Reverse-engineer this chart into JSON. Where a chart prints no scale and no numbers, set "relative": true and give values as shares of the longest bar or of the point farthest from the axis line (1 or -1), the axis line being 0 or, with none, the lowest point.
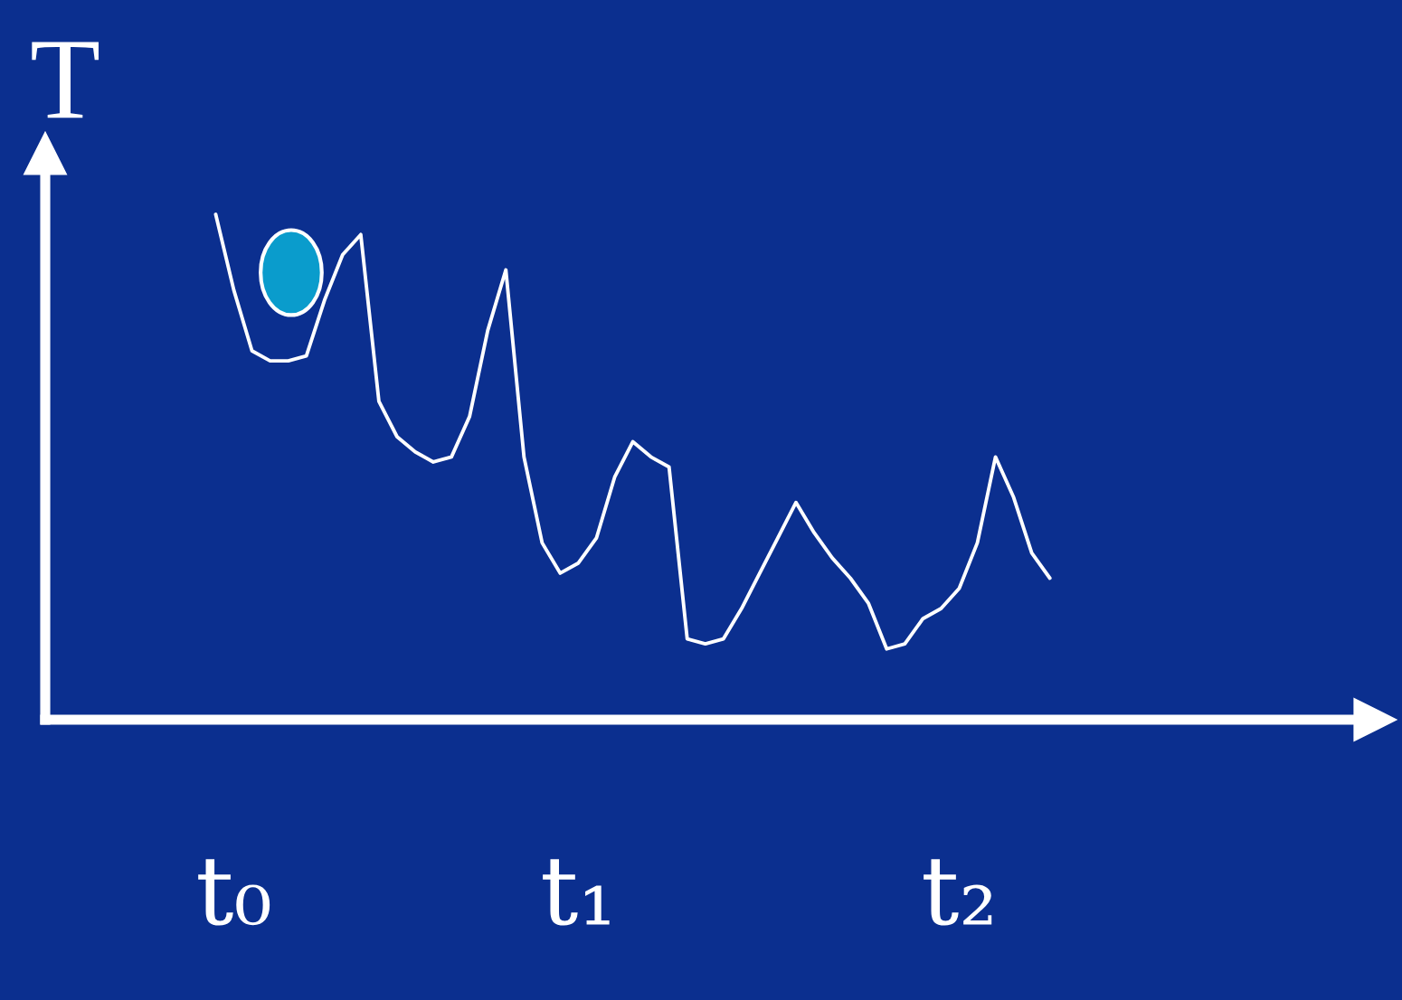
{
  "chart_data": {
    "type": "line",
    "relative": true,
    "ylabel": "T",
    "categories": [
      null,
      "t₀",
      null,
      null,
      null,
      null,
      null,
      null,
      null,
      null,
      null,
      null,
      null,
      null,
      null,
      null,
      null,
      null,
      null,
      null,
      "t₁",
      null,
      null,
      null,
      null,
      null,
      null,
      null,
      null,
      null,
      null,
      null,
      null,
      null,
      null,
      null,
      null,
      null,
      null,
      null,
      null,
      "t₂",
      null,
      null,
      null,
      null,
      null
    ],
    "series": [
      {
        "color": "#ffffff",
        "values": [
          1.0,
          0.85,
          0.73,
          0.71,
          0.71,
          0.72,
          0.83,
          0.92,
          0.96,
          0.63,
          0.56,
          0.53,
          0.51,
          0.52,
          0.6,
          0.77,
          0.89,
          0.52,
          0.35,
          0.29,
          0.31,
          0.36,
          0.48,
          0.55,
          0.52,
          0.5,
          0.16,
          0.15,
          0.16,
          0.22,
          0.29,
          0.36,
          0.43,
          0.37,
          0.32,
          0.28,
          0.23,
          0.14,
          0.15,
          0.2,
          0.22,
          0.26,
          0.35,
          0.52,
          0.44,
          0.33,
          0.28
        ]
      }
    ]
  }
}
